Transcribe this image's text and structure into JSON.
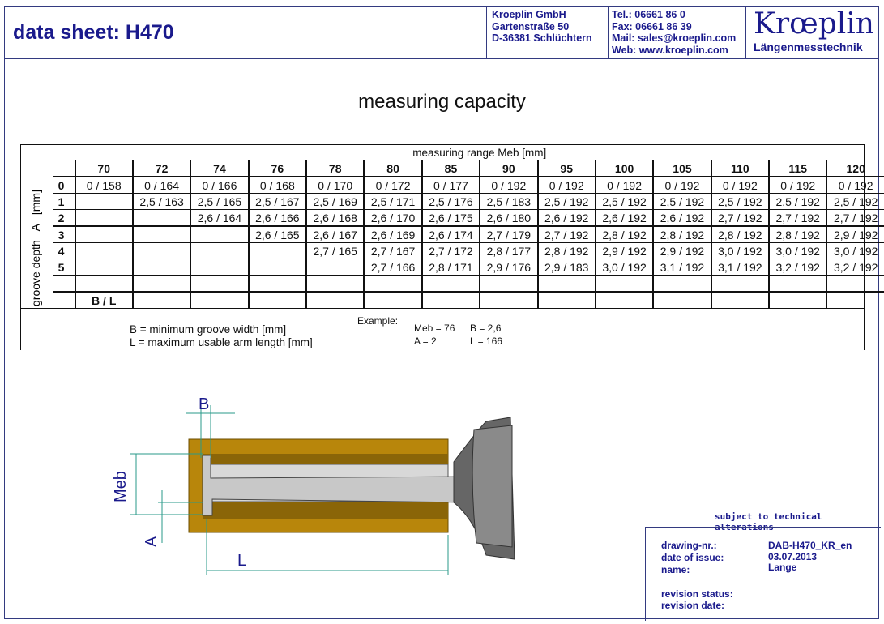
{
  "header": {
    "title": "data sheet:  H470",
    "company": [
      "Kroeplin GmbH",
      "Gartenstraße 50",
      "D-36381 Schlüchtern"
    ],
    "contact": [
      "Tel.:  06661 86 0",
      "Fax:  06661 86 39",
      "Mail: sales@kroeplin.com",
      "Web: www.kroeplin.com"
    ],
    "logo": "Krœplin",
    "logo_sub": "Längenmesstechnik"
  },
  "section_title": "measuring capacity",
  "table": {
    "caption": "measuring range  Meb  [mm]",
    "side_label": "groove depth   A   [mm]",
    "columns": [
      "70",
      "72",
      "74",
      "76",
      "78",
      "80",
      "85",
      "90",
      "95",
      "100",
      "105",
      "110",
      "115",
      "120"
    ],
    "rows": [
      {
        "label": "0",
        "cells": [
          "0 / 158",
          "0 / 164",
          "0 / 166",
          "0 / 168",
          "0 / 170",
          "0 / 172",
          "0 / 177",
          "0 / 192",
          "0 / 192",
          "0 / 192",
          "0 / 192",
          "0 / 192",
          "0 / 192",
          "0 / 192"
        ]
      },
      {
        "label": "1",
        "cells": [
          "",
          "2,5 / 163",
          "2,5 / 165",
          "2,5 / 167",
          "2,5 / 169",
          "2,5 / 171",
          "2,5 / 176",
          "2,5 / 183",
          "2,5 / 192",
          "2,5 / 192",
          "2,5 / 192",
          "2,5 / 192",
          "2,5 / 192",
          "2,5 / 192"
        ]
      },
      {
        "label": "2",
        "cells": [
          "",
          "",
          "2,6 / 164",
          "2,6 / 166",
          "2,6 / 168",
          "2,6 / 170",
          "2,6 / 175",
          "2,6 / 180",
          "2,6 / 192",
          "2,6 / 192",
          "2,6 / 192",
          "2,7 / 192",
          "2,7 / 192",
          "2,7 / 192"
        ]
      },
      {
        "label": "3",
        "cells": [
          "",
          "",
          "",
          "2,6 / 165",
          "2,6 / 167",
          "2,6 / 169",
          "2,6 / 174",
          "2,7 / 179",
          "2,7 / 192",
          "2,8 / 192",
          "2,8 / 192",
          "2,8 / 192",
          "2,8 / 192",
          "2,9 / 192"
        ]
      },
      {
        "label": "4",
        "cells": [
          "",
          "",
          "",
          "",
          "2,7 / 165",
          "2,7 / 167",
          "2,7 / 172",
          "2,8 / 177",
          "2,8 / 192",
          "2,9 / 192",
          "2,9 / 192",
          "3,0 / 192",
          "3,0 / 192",
          "3,0 / 192"
        ]
      },
      {
        "label": "5",
        "cells": [
          "",
          "",
          "",
          "",
          "",
          "2,7 / 166",
          "2,8 / 171",
          "2,9 / 176",
          "2,9 / 183",
          "3,0 / 192",
          "3,1 / 192",
          "3,1 / 192",
          "3,2 / 192",
          "3,2 / 192"
        ]
      }
    ],
    "footer_label": "B / L"
  },
  "legend": {
    "b": "B = minimum groove width [mm]",
    "l": "L = maximum usable arm length [mm]",
    "example_label": "Example:",
    "example": [
      "Meb = 76",
      "B = 2,6",
      "A = 2",
      "L = 166"
    ]
  },
  "drawing": {
    "labels": {
      "b": "B",
      "meb": "Meb",
      "a": "A",
      "l": "L"
    },
    "colors": {
      "body": "#b8860b",
      "dim": "#2a9a8a",
      "label": "#1a1a8c"
    }
  },
  "notice": "subject to technical alterations",
  "title_block": {
    "drawing_nr_label": "drawing-nr.:",
    "drawing_nr": "DAB-H470_KR_en",
    "date_label": "date of issue:",
    "date": "03.07.2013",
    "name_label": "name:",
    "name": "Lange",
    "revision_status_label": "revision status:",
    "revision_date_label": "revision date:"
  }
}
